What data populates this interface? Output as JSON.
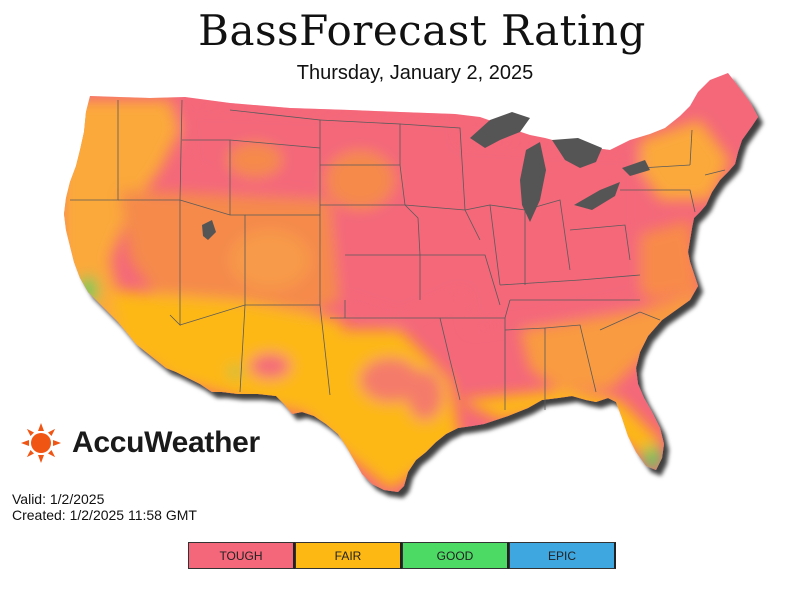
{
  "header": {
    "title": "BassForecast Rating",
    "date": "Thursday, January 2, 2025"
  },
  "brand": {
    "name": "AccuWeather",
    "icon": "sun-icon",
    "color": "#F05514"
  },
  "meta": {
    "valid": "Valid: 1/2/2025",
    "created": "Created: 1/2/2025 11:58 GMT"
  },
  "legend": {
    "items": [
      {
        "label": "TOUGH",
        "color": "#F4677A"
      },
      {
        "label": "FAIR",
        "color": "#FDB813"
      },
      {
        "label": "GOOD",
        "color": "#4CD964"
      },
      {
        "label": "EPIC",
        "color": "#3FA7E0"
      }
    ]
  },
  "map": {
    "region": "Contiguous United States",
    "lake_color": "#555555",
    "border_color": "#5a5a5a"
  }
}
